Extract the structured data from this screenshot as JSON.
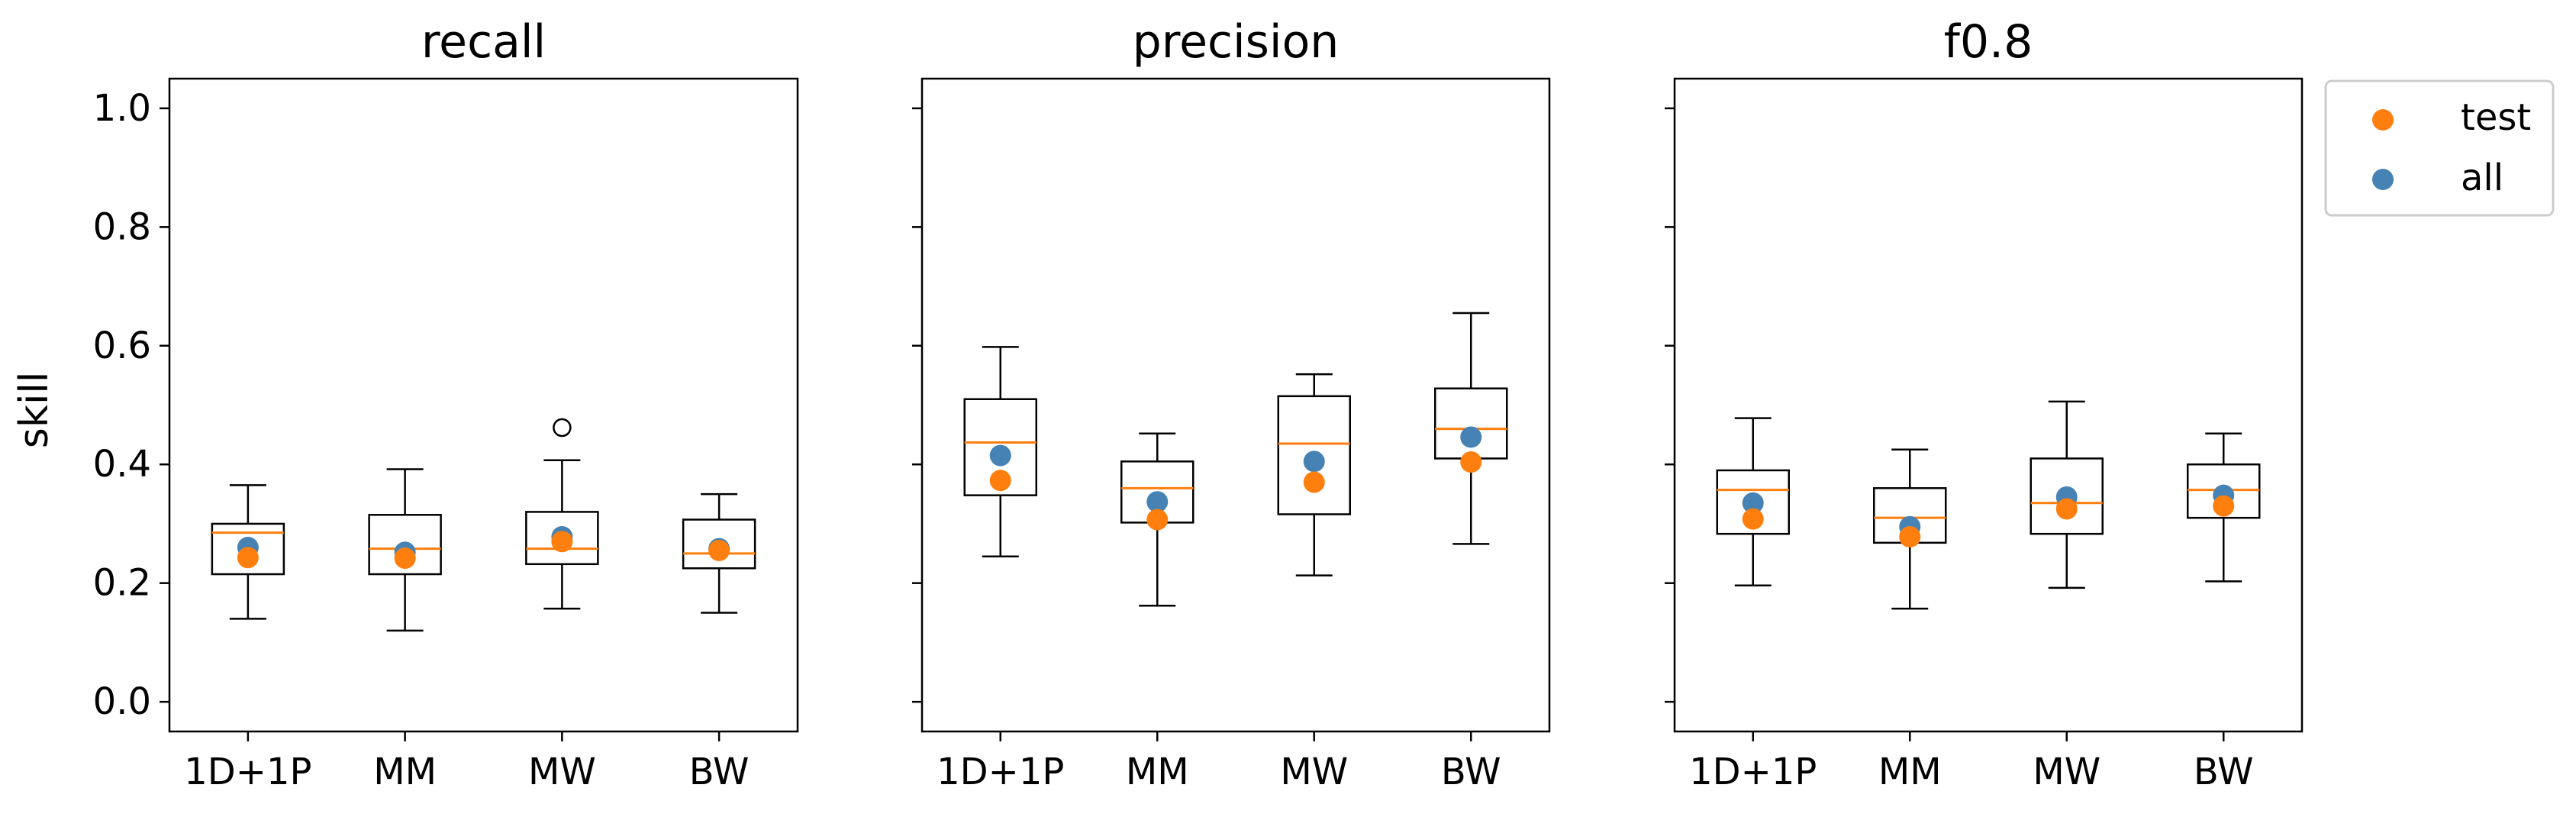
{
  "chart_data": {
    "type": "box",
    "ylabel": "skill",
    "ylim": [
      -0.05,
      1.05
    ],
    "yticks": [
      0.0,
      0.2,
      0.4,
      0.6,
      0.8,
      1.0
    ],
    "ytick_labels": [
      "0.0",
      "0.2",
      "0.4",
      "0.6",
      "0.8",
      "1.0"
    ],
    "categories": [
      "1D+1P",
      "MM",
      "MW",
      "BW"
    ],
    "grid": false,
    "legend_position": "outside-right",
    "legend": [
      {
        "name": "test",
        "color": "#ff7f0e"
      },
      {
        "name": "all",
        "color": "#4682b4"
      }
    ],
    "colors": {
      "median": "#ff7f0e",
      "test": "#ff7f0e",
      "all": "#4682b4",
      "box": "#000000"
    },
    "panels": [
      {
        "title": "recall",
        "boxes": [
          {
            "category": "1D+1P",
            "whisker_low": 0.14,
            "q1": 0.215,
            "median": 0.285,
            "q3": 0.3,
            "whisker_high": 0.365,
            "outliers": [],
            "test": 0.243,
            "all": 0.26
          },
          {
            "category": "MM",
            "whisker_low": 0.12,
            "q1": 0.215,
            "median": 0.258,
            "q3": 0.315,
            "whisker_high": 0.392,
            "outliers": [],
            "test": 0.242,
            "all": 0.252
          },
          {
            "category": "MW",
            "whisker_low": 0.157,
            "q1": 0.232,
            "median": 0.258,
            "q3": 0.32,
            "whisker_high": 0.407,
            "outliers": [
              0.462
            ],
            "test": 0.27,
            "all": 0.278
          },
          {
            "category": "BW",
            "whisker_low": 0.15,
            "q1": 0.225,
            "median": 0.25,
            "q3": 0.307,
            "whisker_high": 0.35,
            "outliers": [],
            "test": 0.255,
            "all": 0.258
          }
        ]
      },
      {
        "title": "precision",
        "boxes": [
          {
            "category": "1D+1P",
            "whisker_low": 0.245,
            "q1": 0.348,
            "median": 0.437,
            "q3": 0.51,
            "whisker_high": 0.598,
            "outliers": [],
            "test": 0.373,
            "all": 0.415
          },
          {
            "category": "MM",
            "whisker_low": 0.162,
            "q1": 0.302,
            "median": 0.36,
            "q3": 0.405,
            "whisker_high": 0.452,
            "outliers": [],
            "test": 0.307,
            "all": 0.337
          },
          {
            "category": "MW",
            "whisker_low": 0.213,
            "q1": 0.316,
            "median": 0.435,
            "q3": 0.515,
            "whisker_high": 0.552,
            "outliers": [],
            "test": 0.37,
            "all": 0.405
          },
          {
            "category": "BW",
            "whisker_low": 0.266,
            "q1": 0.41,
            "median": 0.46,
            "q3": 0.528,
            "whisker_high": 0.655,
            "outliers": [],
            "test": 0.404,
            "all": 0.446
          }
        ]
      },
      {
        "title": "f0.8",
        "boxes": [
          {
            "category": "1D+1P",
            "whisker_low": 0.196,
            "q1": 0.283,
            "median": 0.357,
            "q3": 0.39,
            "whisker_high": 0.478,
            "outliers": [],
            "test": 0.308,
            "all": 0.335
          },
          {
            "category": "MM",
            "whisker_low": 0.157,
            "q1": 0.268,
            "median": 0.31,
            "q3": 0.36,
            "whisker_high": 0.425,
            "outliers": [],
            "test": 0.278,
            "all": 0.295
          },
          {
            "category": "MW",
            "whisker_low": 0.192,
            "q1": 0.283,
            "median": 0.335,
            "q3": 0.41,
            "whisker_high": 0.506,
            "outliers": [],
            "test": 0.325,
            "all": 0.345
          },
          {
            "category": "BW",
            "whisker_low": 0.203,
            "q1": 0.31,
            "median": 0.357,
            "q3": 0.4,
            "whisker_high": 0.452,
            "outliers": [],
            "test": 0.33,
            "all": 0.348
          }
        ]
      }
    ]
  }
}
